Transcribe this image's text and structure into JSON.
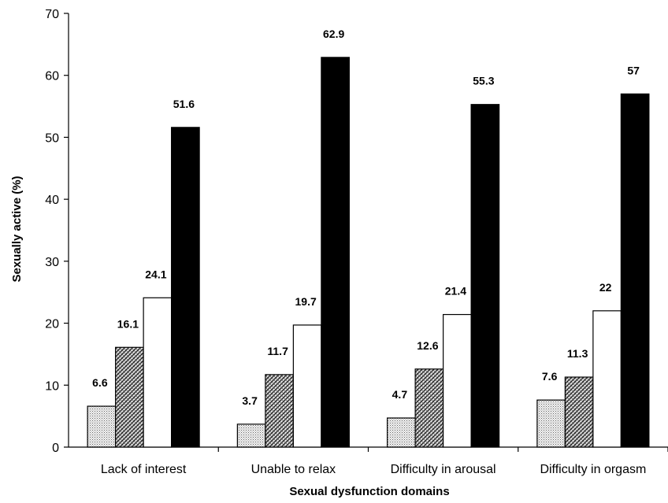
{
  "chart_data": {
    "type": "bar",
    "title": "",
    "xlabel": "Sexual dysfunction domains",
    "ylabel": "Sexually active (%)",
    "ylim": [
      0,
      70
    ],
    "yticks": [
      0,
      10,
      20,
      30,
      40,
      50,
      60,
      70
    ],
    "grid": false,
    "legend": "none",
    "categories": [
      "Lack of interest",
      "Unable to relax",
      "Difficulty in arousal",
      "Difficulty in orgasm"
    ],
    "series": [
      {
        "values": [
          6.6,
          3.7,
          4.7,
          7.6
        ],
        "labels": [
          "6.6",
          "3.7",
          "4.7",
          "7.6"
        ],
        "fill": "dotted",
        "color": "#d8d8d8"
      },
      {
        "values": [
          16.1,
          11.7,
          12.6,
          11.3
        ],
        "labels": [
          "16.1",
          "11.7",
          "12.6",
          "11.3"
        ],
        "fill": "crosshatch",
        "color": "#8a8a8a"
      },
      {
        "values": [
          24.1,
          19.7,
          21.4,
          22
        ],
        "labels": [
          "24.1",
          "19.7",
          "21.4",
          "22"
        ],
        "fill": "solid",
        "color": "#ffffff"
      },
      {
        "values": [
          51.6,
          62.9,
          55.3,
          57
        ],
        "labels": [
          "51.6",
          "62.9",
          "55.3",
          "57"
        ],
        "fill": "solid",
        "color": "#000000"
      }
    ]
  }
}
